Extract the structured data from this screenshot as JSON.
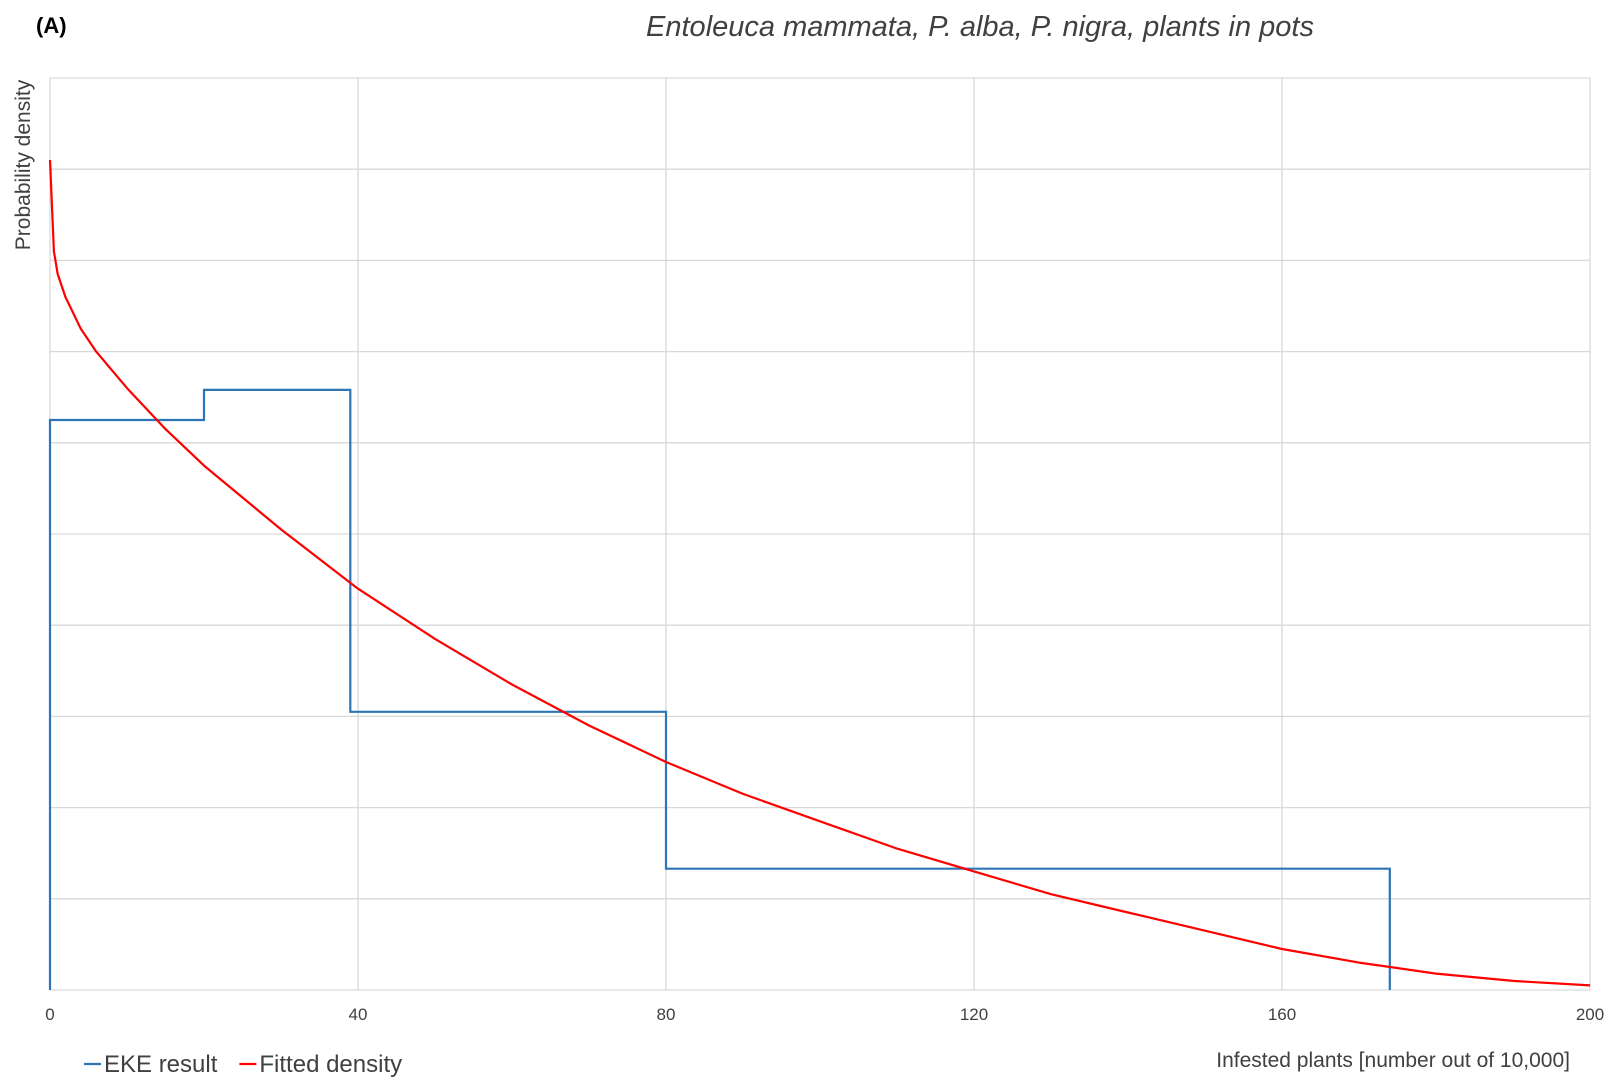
{
  "panel_label": "(A)",
  "chart_data": {
    "type": "line",
    "title": "Entoleuca mammata, P. alba, P. nigra, plants in pots",
    "xlabel": "Infested plants [number out of 10,000]",
    "ylabel": "Probability density",
    "xlim": [
      0,
      200
    ],
    "ylim": [
      0,
      10
    ],
    "x_ticks": [
      0,
      40,
      80,
      120,
      160,
      200
    ],
    "y_grid_lines": 10,
    "y_tick_labels_shown": false,
    "grid": true,
    "legend_position": "bottom-left",
    "series": [
      {
        "name": "EKE result",
        "style": "step",
        "color": "#2e75b6",
        "x": [
          0,
          0,
          20,
          20,
          39,
          39,
          80,
          80,
          174,
          174
        ],
        "y": [
          0,
          6.25,
          6.25,
          6.58,
          6.58,
          3.05,
          3.05,
          1.33,
          1.33,
          0
        ]
      },
      {
        "name": "Fitted density",
        "style": "line",
        "color": "#ff0000",
        "x": [
          0,
          0.5,
          1,
          2,
          4,
          6,
          10,
          15,
          20,
          30,
          40,
          50,
          60,
          70,
          80,
          90,
          100,
          110,
          120,
          130,
          140,
          150,
          160,
          170,
          180,
          190,
          200
        ],
        "y": [
          9.1,
          8.1,
          7.85,
          7.6,
          7.25,
          7.0,
          6.6,
          6.15,
          5.75,
          5.05,
          4.4,
          3.85,
          3.35,
          2.9,
          2.5,
          2.15,
          1.85,
          1.55,
          1.3,
          1.05,
          0.85,
          0.65,
          0.45,
          0.3,
          0.18,
          0.1,
          0.05
        ]
      }
    ]
  }
}
